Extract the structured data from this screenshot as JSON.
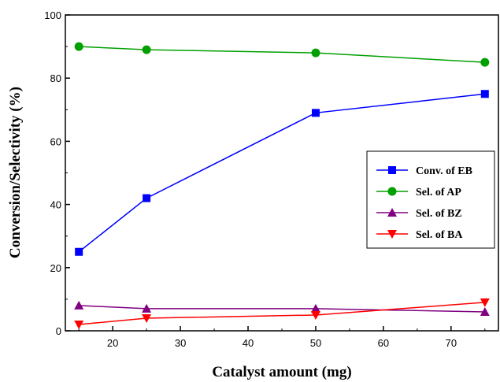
{
  "chart_data": {
    "type": "line",
    "xlabel": "Catalyst amount (mg)",
    "ylabel": "Conversion/Selectivity (%)",
    "xlim": [
      13,
      77
    ],
    "ylim": [
      0,
      100
    ],
    "xticks": [
      20,
      30,
      40,
      50,
      60,
      70
    ],
    "yticks": [
      0,
      20,
      40,
      60,
      80,
      100
    ],
    "x": [
      15,
      25,
      50,
      75
    ],
    "grid": false,
    "legend_position": "right",
    "series": [
      {
        "name": "Conv. of EB",
        "values": [
          25,
          42,
          69,
          75
        ],
        "color": "#0000ff",
        "marker": "square"
      },
      {
        "name": "Sel. of AP",
        "values": [
          90,
          89,
          88,
          85
        ],
        "color": "#00a000",
        "marker": "circle"
      },
      {
        "name": "Sel. of BZ",
        "values": [
          8,
          7,
          7,
          6
        ],
        "color": "#800080",
        "marker": "triangle-up"
      },
      {
        "name": "Sel. of BA",
        "values": [
          2,
          4,
          5,
          9
        ],
        "color": "#ff0000",
        "marker": "triangle-down"
      }
    ]
  }
}
